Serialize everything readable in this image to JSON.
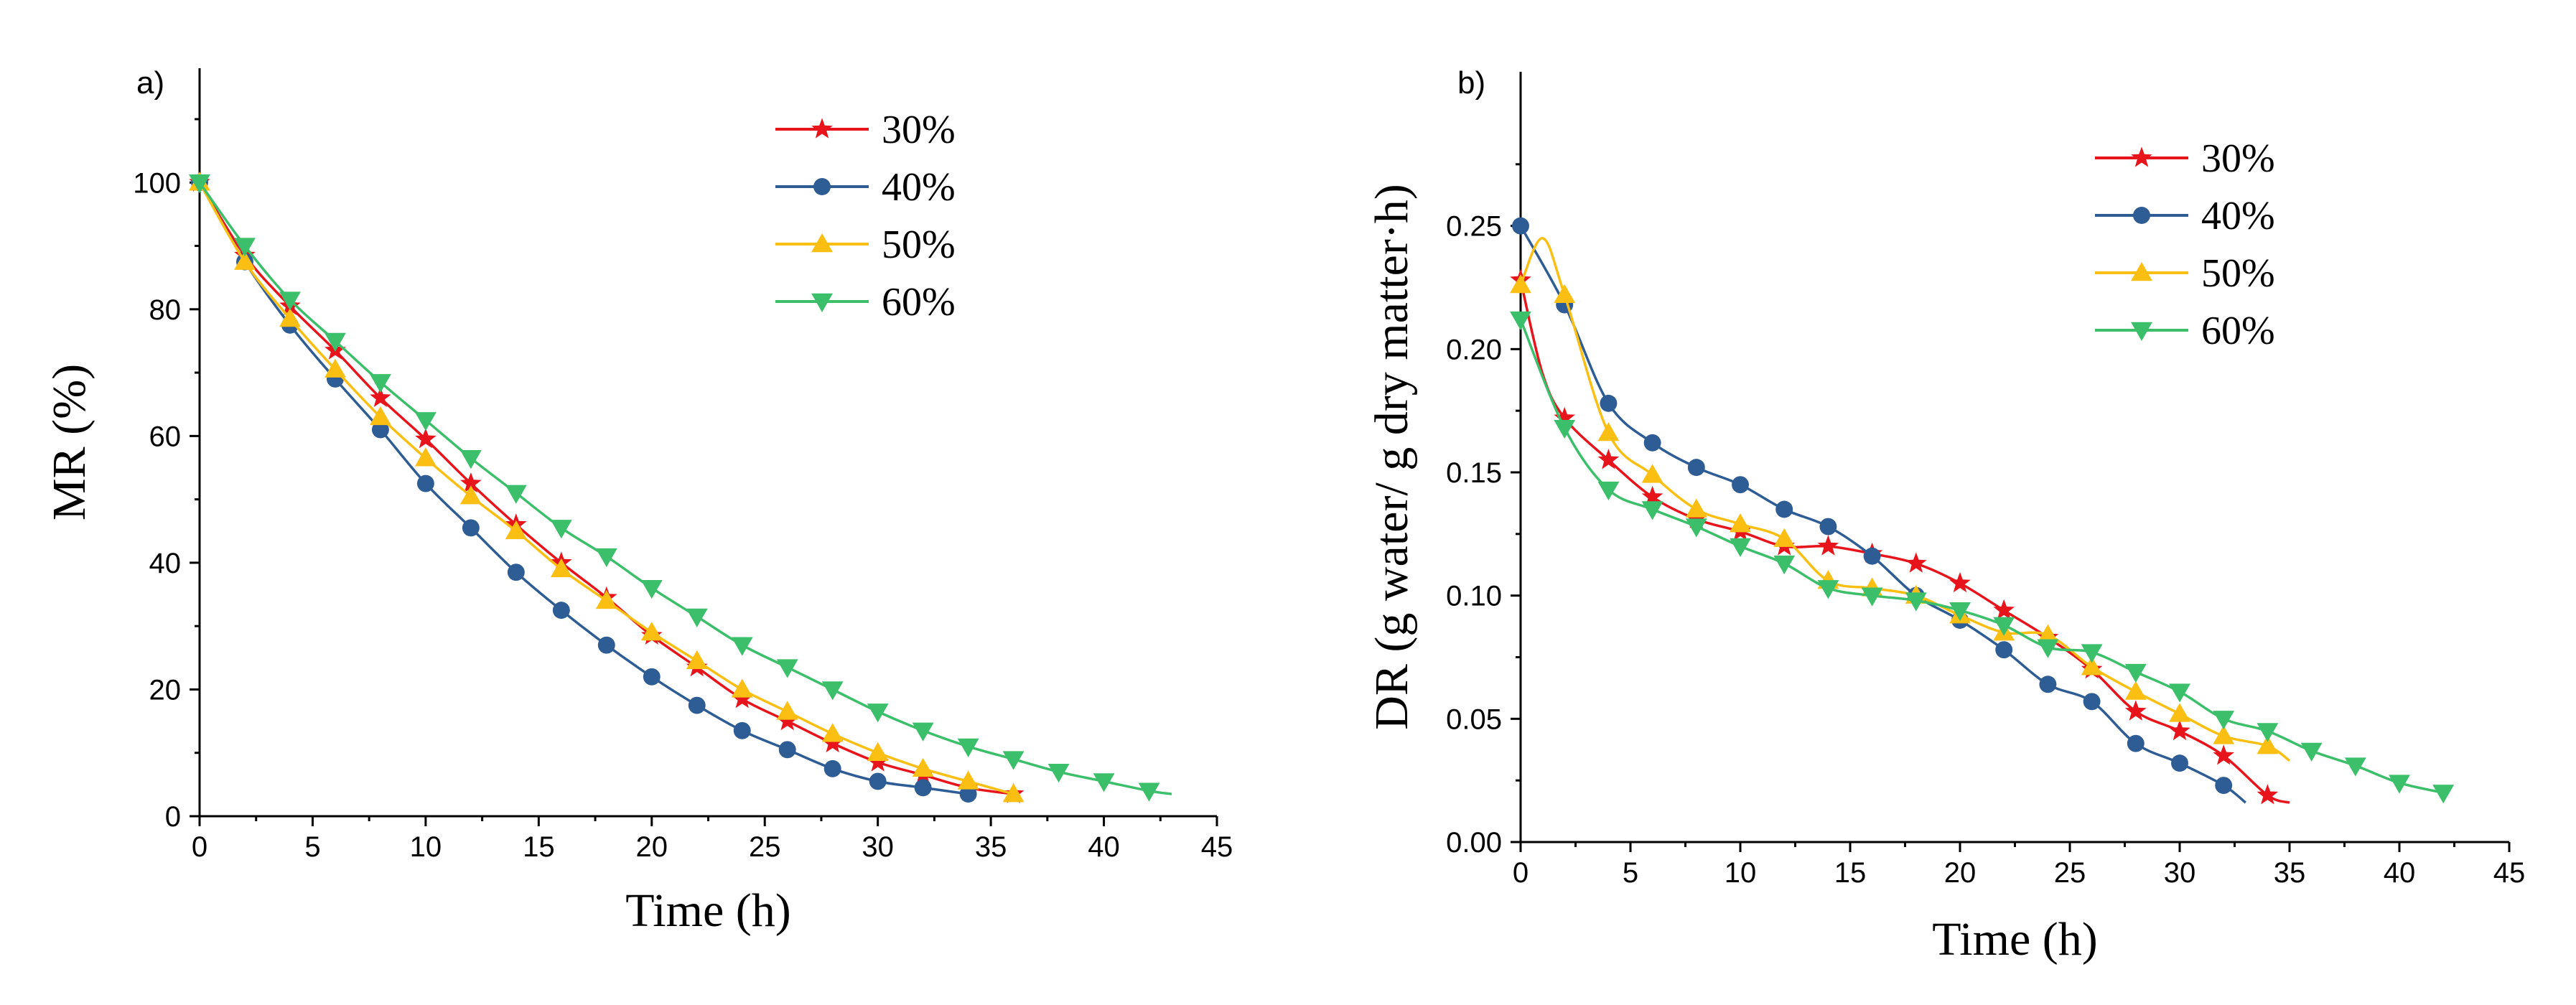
{
  "colors": {
    "s30": "#e8141b",
    "s40": "#2e5c94",
    "s50": "#fbbf14",
    "s60": "#3cbf6a"
  },
  "chart_data": [
    {
      "type": "line",
      "panel_label": "a)",
      "xlabel": "Time (h)",
      "ylabel": "MR (%)",
      "xlim": [
        0,
        45
      ],
      "ylim": [
        0,
        110
      ],
      "xticks": [
        0,
        5,
        10,
        15,
        20,
        25,
        30,
        35,
        40,
        45
      ],
      "yticks": [
        0,
        20,
        40,
        60,
        80,
        100
      ],
      "legend_position": "top-right",
      "series": [
        {
          "name": "30%",
          "color": "#e8141b",
          "marker": "star",
          "x": [
            0,
            2,
            4,
            6,
            8,
            10,
            12,
            14,
            16,
            18,
            20,
            22,
            24,
            26,
            28,
            30,
            32,
            34,
            36
          ],
          "y": [
            100,
            88.5,
            80.5,
            73.5,
            66,
            59.5,
            52.5,
            46,
            40,
            34.5,
            28.5,
            23.5,
            18.5,
            15,
            11.5,
            8.5,
            6.5,
            4.5,
            3.5
          ]
        },
        {
          "name": "40%",
          "color": "#2e5c94",
          "marker": "circle",
          "x": [
            0,
            2,
            4,
            6,
            8,
            10,
            12,
            14,
            16,
            18,
            20,
            22,
            24,
            26,
            28,
            30,
            32,
            34
          ],
          "y": [
            100,
            87.5,
            77.5,
            69,
            61,
            52.5,
            45.5,
            38.5,
            32.5,
            27,
            22,
            17.5,
            13.5,
            10.5,
            7.5,
            5.5,
            4.5,
            3.5
          ]
        },
        {
          "name": "50%",
          "color": "#fbbf14",
          "marker": "triangle-up",
          "x": [
            0,
            2,
            4,
            6,
            8,
            10,
            12,
            14,
            16,
            18,
            20,
            22,
            24,
            26,
            28,
            30,
            32,
            34,
            36
          ],
          "y": [
            100,
            87.5,
            78.5,
            70.5,
            63,
            56.5,
            50.5,
            45,
            39,
            34,
            29,
            24.5,
            20,
            16.5,
            13,
            10,
            7.5,
            5.5,
            3.5
          ]
        },
        {
          "name": "60%",
          "color": "#3cbf6a",
          "marker": "triangle-down",
          "x": [
            0,
            2,
            4,
            6,
            8,
            10,
            12,
            14,
            16,
            18,
            20,
            22,
            24,
            26,
            28,
            30,
            32,
            34,
            36,
            38,
            40,
            42,
            43
          ],
          "y": [
            100,
            90,
            81.5,
            75,
            68.5,
            62.5,
            56.5,
            51,
            45.5,
            41,
            36,
            31.5,
            27,
            23.5,
            20,
            16.5,
            13.5,
            11,
            9,
            7,
            5.5,
            4,
            3.5
          ]
        }
      ]
    },
    {
      "type": "line",
      "panel_label": "b)",
      "xlabel": "Time (h)",
      "ylabel": "DR (g water/ g dry matter·h)",
      "xlim": [
        0,
        45
      ],
      "ylim": [
        0,
        0.27
      ],
      "xticks": [
        0,
        5,
        10,
        15,
        20,
        25,
        30,
        35,
        40,
        45
      ],
      "yticks": [
        0.0,
        0.05,
        0.1,
        0.15,
        0.2,
        0.25
      ],
      "ytick_labels": [
        "0.00",
        "0.05",
        "0.10",
        "0.15",
        "0.20",
        "0.25"
      ],
      "legend_position": "top-right",
      "series": [
        {
          "name": "30%",
          "color": "#e8141b",
          "marker": "star",
          "x": [
            0,
            1,
            2,
            4,
            6,
            8,
            10,
            12,
            14,
            16,
            18,
            20,
            22,
            24,
            26,
            28,
            30,
            32,
            34,
            35
          ],
          "y": [
            0.228,
            0.19,
            0.172,
            0.155,
            0.14,
            0.131,
            0.126,
            0.12,
            0.12,
            0.117,
            0.113,
            0.105,
            0.094,
            0.083,
            0.07,
            0.053,
            0.045,
            0.035,
            0.019,
            0.016
          ]
        },
        {
          "name": "40%",
          "color": "#2e5c94",
          "marker": "circle",
          "x": [
            0,
            2,
            4,
            6,
            8,
            10,
            12,
            14,
            16,
            18,
            20,
            22,
            24,
            26,
            28,
            30,
            32,
            33
          ],
          "y": [
            0.25,
            0.218,
            0.178,
            0.162,
            0.152,
            0.145,
            0.135,
            0.128,
            0.116,
            0.1,
            0.09,
            0.078,
            0.064,
            0.057,
            0.04,
            0.032,
            0.023,
            0.016
          ]
        },
        {
          "name": "50%",
          "color": "#fbbf14",
          "marker": "triangle-up",
          "x": [
            0,
            1,
            2,
            4,
            6,
            8,
            10,
            12,
            14,
            16,
            18,
            20,
            22,
            24,
            26,
            28,
            30,
            32,
            34,
            35
          ],
          "y": [
            0.226,
            0.245,
            0.222,
            0.166,
            0.149,
            0.135,
            0.129,
            0.123,
            0.106,
            0.103,
            0.1,
            0.092,
            0.085,
            0.084,
            0.071,
            0.061,
            0.052,
            0.043,
            0.039,
            0.033
          ]
        },
        {
          "name": "60%",
          "color": "#3cbf6a",
          "marker": "triangle-down",
          "x": [
            0,
            2,
            4,
            6,
            8,
            10,
            12,
            14,
            16,
            18,
            20,
            22,
            24,
            26,
            28,
            30,
            32,
            34,
            36,
            38,
            40,
            42
          ],
          "y": [
            0.212,
            0.168,
            0.143,
            0.135,
            0.128,
            0.12,
            0.113,
            0.103,
            0.1,
            0.098,
            0.094,
            0.088,
            0.079,
            0.077,
            0.069,
            0.061,
            0.05,
            0.045,
            0.037,
            0.031,
            0.024,
            0.02
          ]
        }
      ]
    }
  ]
}
